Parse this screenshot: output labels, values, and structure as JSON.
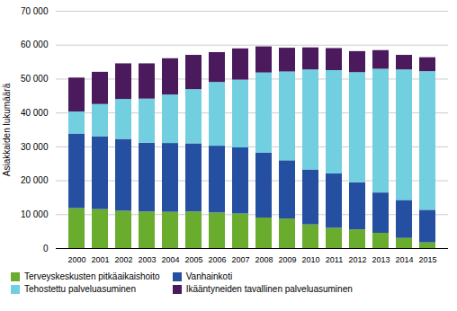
{
  "chart_data": {
    "type": "bar",
    "stacked": true,
    "ylabel": "Asiakkaiden lukumäärä",
    "categories": [
      2000,
      2001,
      2002,
      2003,
      2004,
      2005,
      2006,
      2007,
      2008,
      2009,
      2010,
      2011,
      2012,
      2013,
      2014,
      2015
    ],
    "series": [
      {
        "name": "Terveyskeskusten pitkäaikaishoito",
        "color": "#6aad2e",
        "values": [
          11800,
          11500,
          11000,
          10800,
          10700,
          10800,
          10500,
          10200,
          9000,
          8700,
          7000,
          6000,
          5500,
          4500,
          3000,
          1700
        ]
      },
      {
        "name": "Vanhainkoti",
        "color": "#254fa0",
        "values": [
          22000,
          21500,
          21200,
          20300,
          20300,
          20100,
          19700,
          19500,
          19200,
          17200,
          16200,
          16000,
          13900,
          11900,
          11200,
          9600
        ]
      },
      {
        "name": "Tehostettu palveluasuminen",
        "color": "#72cfe0",
        "values": [
          6500,
          9500,
          11800,
          13000,
          14300,
          16000,
          18800,
          20000,
          23600,
          26200,
          29500,
          30500,
          32500,
          36500,
          38500,
          40900
        ]
      },
      {
        "name": "Ikääntyneiden tavallinen palveluasuminen",
        "color": "#4a1a5c",
        "values": [
          10000,
          9500,
          10500,
          10400,
          10700,
          10100,
          8800,
          9200,
          7700,
          7000,
          6500,
          6500,
          6200,
          5500,
          4300,
          4100
        ]
      }
    ],
    "ylim": [
      0,
      70000
    ],
    "yticks": [
      0,
      {
        "value": 10000,
        "label": "10 000"
      },
      {
        "value": 20000,
        "label": "20 000"
      },
      {
        "value": 30000,
        "label": "30 000"
      },
      {
        "value": 40000,
        "label": "40 000"
      },
      {
        "value": 50000,
        "label": "50 000"
      },
      {
        "value": 60000,
        "label": "60 000"
      },
      {
        "value": 70000,
        "label": "70 000"
      }
    ],
    "grid": true,
    "legend": "bottom"
  }
}
